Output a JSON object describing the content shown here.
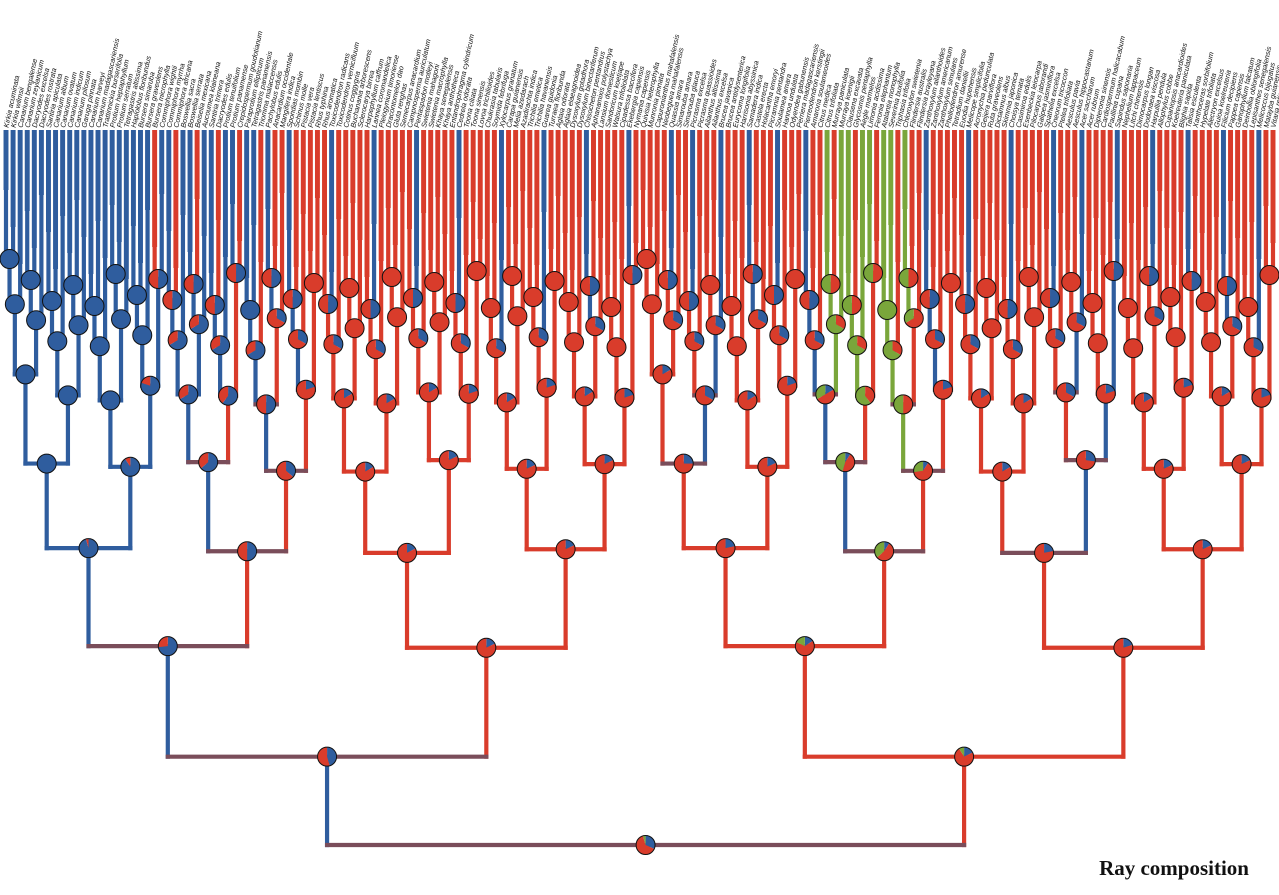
{
  "figure": {
    "caption": "Ray composition"
  },
  "colors": {
    "state_1": "#2f5d9e",
    "state_2": "#d93c2b",
    "state_3": "#7aa63b",
    "mixed_blue_red": "#7a4d5a"
  },
  "tips": [
    "Kirkia acuminata",
    "Kirkia wilmsii",
    "Canarium bengalense",
    "Canarium zeylanicum",
    "Dacryodes excelsa",
    "Dacryodes rostrata",
    "Santiria apiculata",
    "Canarium album",
    "Canarium ovatum",
    "Canarium indicum",
    "Canarium pilosum",
    "Garuga pinnata",
    "Canarium harveyi",
    "Canarium madagascariensis",
    "Trattinnickia burserifolia",
    "Protium heptaphyllum",
    "Protium serratum",
    "Tetragastris altissima",
    "Haplolobus floribundus",
    "Bursera simaruba",
    "Bursera graveolens",
    "Bursera microphylla",
    "Commiphora wightii",
    "Commiphora myrrha",
    "Commiphora africana",
    "Boswellia sacra",
    "Boswellia serrata",
    "Beiselia mexicana",
    "Aucoumea klaineana",
    "Santiria trimera",
    "Dacryodes edulis",
    "Protium tenuifolium",
    "Protium panamense",
    "Crepidospermum goudotianum",
    "Paraprotium ellipticum",
    "Tetragastris panamensis",
    "Triomma malaccensis",
    "Pachylobus edulis",
    "Anacardium occidentale",
    "Mangifera indica",
    "Spondias mombin",
    "Schinus molle",
    "Pistacia vera",
    "Pistacia lentiscus",
    "Rhus typhina",
    "Rhus aromatica",
    "Toxicodendron radicans",
    "Toxicodendron vernicifluum",
    "Cotinus coggygria",
    "Buchanania arborescens",
    "Sclerocarya birrea",
    "Harpephyllum caffrum",
    "Lannea coromandelica",
    "Pleiogynium timoriense",
    "Dracontomelon dao",
    "Gluta renghas",
    "Semecarpus anacardium",
    "Campnosperma auriculatum",
    "Pentaspadon motleyi",
    "Swietenia mahagoni",
    "Swietenia macrophylla",
    "Khaya senegalensis",
    "Khaya anthotheca",
    "Entandrophragma cylindricum",
    "Cedrela odorata",
    "Toona ciliata",
    "Toona sinensis",
    "Lovoa trichilioides",
    "Chukrasia tabularis",
    "Soymida febrifuga",
    "Xylocarpus granatum",
    "Carapa guianensis",
    "Melia azedarach",
    "Azadirachta indica",
    "Trichilia emetica",
    "Trichilia havanensis",
    "Guarea guidonia",
    "Turraea floribunda",
    "Aglaia odorata",
    "Aglaia elaeagnoidea",
    "Dysoxylum gotadhora",
    "Dysoxylum binectariferum",
    "Chisocheton pentandrus",
    "Aphanamixis polystachya",
    "Lansium domesticum",
    "Sandoricum koetjape",
    "Walsura trifoliolata",
    "Cipadessa baccifera",
    "Ekebergia capensis",
    "Nymania capensis",
    "Quivisia heterophylla",
    "Munronia pinnata",
    "Capuronianthus mahafalensis",
    "Neobeguea mahafalensis",
    "Quassia amara",
    "Simarouba amara",
    "Simarouba glauca",
    "Picrasma excelsa",
    "Picrasma quassioides",
    "Ailanthus altissima",
    "Ailanthus excelsa",
    "Brucea javanica",
    "Brucea antidysenterica",
    "Eurycoma longifolia",
    "Harrisonia abyssinica",
    "Samadera indica",
    "Castela erecta",
    "Holacantha emoryi",
    "Picramnia pentandra",
    "Soulamea amara",
    "Hannoa undulata",
    "Odyendea gabunensis",
    "Perriera madagascariensis",
    "Pierreodendron kerstingii",
    "Amaroria soulameoides",
    "Citrus medica",
    "Citrus trifoliata",
    "Murraya paniculata",
    "Murraya koenigii",
    "Clausena excavata",
    "Glycosmis pentaphylla",
    "Aegle marmelos",
    "Limonia acidissima",
    "Feronia elephantum",
    "Atalantia monophylla",
    "Severinia buxifolia",
    "Triphasia trifolia",
    "Chloroxylon swietenia",
    "Flindersia australis",
    "Flindersia brayleyana",
    "Zanthoxylum ailanthoides",
    "Zanthoxylum americanum",
    "Zanthoxylum simulans",
    "Phellodendron amurense",
    "Tetradium daniellii",
    "Euodia hupehensis",
    "Melicope simplicifolia",
    "Acronychia pedunculata",
    "Geijera parviflora",
    "Ruta graveolens",
    "Dictamnus albus",
    "Skimmia japonica",
    "Choisya ternata",
    "Casimiroa edulis",
    "Esenbeckia leiocarpa",
    "Pilocarpus jaborandi",
    "Galipea jasminiflora",
    "Spathelia excelsa",
    "Cneorum tricoccon",
    "Ptelea trifoliata",
    "Aesculus pavia",
    "Aesculus hippocastanum",
    "Acer saccharum",
    "Acer rubrum",
    "Dipteronia sinensis",
    "Cardiospermum halicacabum",
    "Paullinia cupana",
    "Sapindus saponaria",
    "Nephelium lappaceum",
    "Litchi chinensis",
    "Dimocarpus longan",
    "Dodonaea viscosa",
    "Harpullia pendula",
    "Allophylus cobbe",
    "Cupaniopsis anacardioides",
    "Koelreuteria paniculata",
    "Blighia sapida",
    "Talisia esculenta",
    "Xanthoceras sorbifolium",
    "Hypelate trifoliata",
    "Alectryon excelsus",
    "Guioa koelreuteria",
    "Filicium decipiens",
    "Pappea capensis",
    "Ganophyllum falcatum",
    "Deinbollia oblongifolia",
    "Lepisanthes senegalensis",
    "Melicoccus bijugatus",
    "Matayba guianensis",
    "Vitaria reticulata"
  ]
}
